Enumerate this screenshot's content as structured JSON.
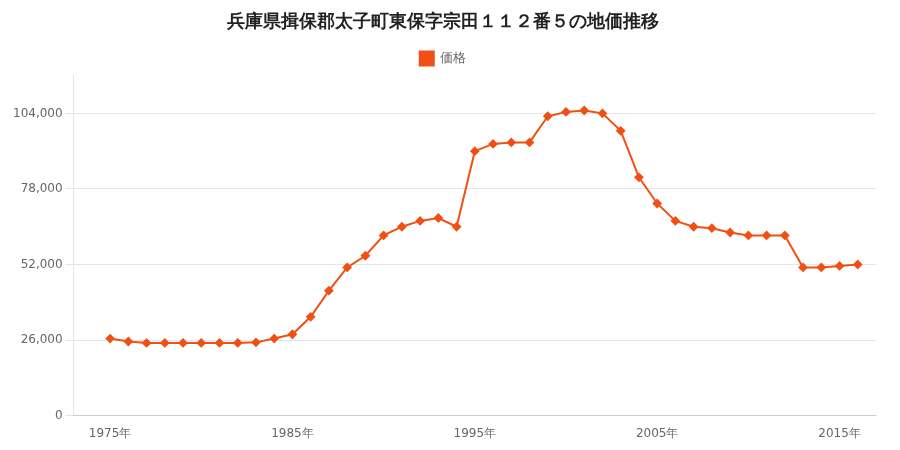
{
  "chart_data": {
    "type": "line",
    "title": "兵庫県揖保郡太子町東保字宗田１１２番５の地価推移",
    "x": [
      1975,
      1976,
      1977,
      1978,
      1979,
      1980,
      1981,
      1982,
      1983,
      1984,
      1985,
      1986,
      1987,
      1988,
      1989,
      1990,
      1991,
      1992,
      1993,
      1994,
      1995,
      1996,
      1997,
      1998,
      1999,
      2000,
      2001,
      2002,
      2003,
      2004,
      2005,
      2006,
      2007,
      2008,
      2009,
      2010,
      2011,
      2012,
      2013,
      2014,
      2015,
      2016
    ],
    "series": [
      {
        "name": "価格",
        "color": "#f05014",
        "marker": "diamond",
        "values": [
          26500,
          25500,
          25000,
          25000,
          25000,
          25000,
          25000,
          25000,
          25200,
          26500,
          28000,
          34000,
          43000,
          51000,
          55000,
          62000,
          65000,
          67000,
          68000,
          65000,
          91000,
          93500,
          94000,
          94000,
          103000,
          104500,
          105000,
          104000,
          98000,
          82000,
          73000,
          67000,
          65000,
          64500,
          63000,
          62000,
          62000,
          62000,
          51000,
          51000,
          51500,
          52000
        ]
      }
    ],
    "xlim": [
      1973,
      2017
    ],
    "xticks": [
      {
        "value": 1975,
        "label": "1975年"
      },
      {
        "value": 1985,
        "label": "1985年"
      },
      {
        "value": 1995,
        "label": "1995年"
      },
      {
        "value": 2005,
        "label": "2005年"
      },
      {
        "value": 2015,
        "label": "2015年"
      }
    ],
    "ylim": [
      0,
      117000
    ],
    "yticks": [
      0,
      {
        "value": 26000,
        "label": "26,000"
      },
      {
        "value": 52000,
        "label": "52,000"
      },
      {
        "value": 78000,
        "label": "78,000"
      },
      {
        "value": 104000,
        "label": "104,000"
      }
    ],
    "grid": "y",
    "legend": "top"
  }
}
